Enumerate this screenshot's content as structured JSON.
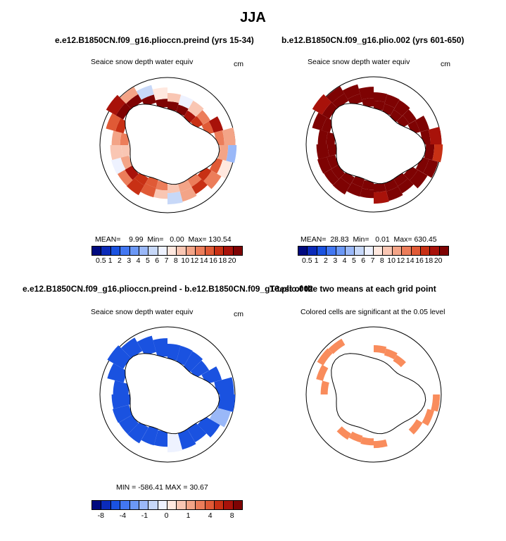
{
  "figure": {
    "title": "JJA",
    "common_subtitle": "Seaice snow depth water equiv",
    "units": "cm"
  },
  "panels": {
    "p1": {
      "case_title": "e.e12.B1850CN.f09_g16.plioccn.preind (yrs 15-34)",
      "stats": {
        "mean_label": "MEAN=",
        "mean": "9.99",
        "min_label": "Min=",
        "min": "0.00",
        "max_label": "Max=",
        "max": "130.54"
      }
    },
    "p2": {
      "case_title": "b.e12.B1850CN.f09_g16.plio.002 (yrs 601-650)",
      "stats": {
        "mean_label": "MEAN=",
        "mean": "28.83",
        "min_label": "Min=",
        "min": "0.01",
        "max_label": "Max=",
        "max": "630.45"
      }
    },
    "p3": {
      "case_title": "e.e12.B1850CN.f09_g16.plioccn.preind - b.e12.B1850CN.f09_g16.plio.002",
      "stats_text": "MIN = -586.41  MAX = 30.67"
    },
    "p4": {
      "case_title": "T-test of the two means at each grid point",
      "subtitle": "Colored cells are significant at the 0.05 level"
    }
  },
  "colorbars": {
    "abs_colors": [
      "#000a7f",
      "#0b2bb9",
      "#1a52e0",
      "#4277f2",
      "#6b98f6",
      "#9ab8f8",
      "#c7d8f8",
      "#eef2ff",
      "#ffe8df",
      "#f9c6b3",
      "#f3a487",
      "#ec7d5a",
      "#e05a36",
      "#c83014",
      "#a8120a",
      "#7e0303"
    ],
    "abs_labels": [
      "0.5",
      "1",
      "2",
      "3",
      "4",
      "5",
      "6",
      "7",
      "8",
      "10",
      "12",
      "14",
      "16",
      "18",
      "20"
    ],
    "diff_colors": [
      "#000a7f",
      "#0b2bb9",
      "#1a52e0",
      "#4277f2",
      "#6b98f6",
      "#9ab8f8",
      "#c7d8f8",
      "#eef2ff",
      "#ffe8df",
      "#f9c6b3",
      "#f3a487",
      "#ec7d5a",
      "#e05a36",
      "#c83014",
      "#a8120a",
      "#7e0303"
    ],
    "diff_labels": [
      "-8",
      "-4",
      "-1",
      "0",
      "1",
      "4",
      "8"
    ]
  },
  "colors": {
    "sig_cell": "#f98c5c",
    "land_outline": "#000000"
  },
  "chart_data": [
    {
      "type": "heatmap",
      "title": "e.e12.B1850CN.f09_g16.plioccn.preind (yrs 15-34)",
      "subtitle": "Seaice snow depth water equiv",
      "units": "cm",
      "mean": 9.99,
      "min": 0.0,
      "max": 130.54,
      "levels": [
        0.5,
        1,
        2,
        3,
        4,
        5,
        6,
        7,
        8,
        10,
        12,
        14,
        16,
        18,
        20
      ],
      "ring": [
        8,
        6,
        9,
        12,
        18,
        10,
        4,
        7,
        13,
        16,
        11,
        5,
        9,
        14,
        17,
        12,
        6,
        8,
        11,
        15,
        18,
        10,
        5,
        7
      ],
      "inner": [
        20,
        20,
        18,
        16,
        14,
        12,
        10,
        14,
        16,
        12,
        10,
        8,
        12,
        14,
        16,
        18,
        10,
        8,
        12,
        16,
        20,
        20,
        20,
        20
      ]
    },
    {
      "type": "heatmap",
      "title": "b.e12.B1850CN.f09_g16.plio.002 (yrs 601-650)",
      "subtitle": "Seaice snow depth water equiv",
      "units": "cm",
      "mean": 28.83,
      "min": 0.01,
      "max": 630.45,
      "levels": [
        0.5,
        1,
        2,
        3,
        4,
        5,
        6,
        7,
        8,
        10,
        12,
        14,
        16,
        18,
        20
      ],
      "ring": [
        20,
        20,
        20,
        20,
        20,
        18,
        16,
        20,
        20,
        20,
        20,
        18,
        20,
        20,
        20,
        20,
        20,
        20,
        20,
        20,
        18,
        20,
        20,
        20
      ],
      "inner": [
        20,
        20,
        20,
        20,
        20,
        20,
        20,
        20,
        20,
        20,
        20,
        20,
        20,
        20,
        20,
        20,
        20,
        20,
        20,
        20,
        20,
        20,
        20,
        20
      ]
    },
    {
      "type": "heatmap",
      "title": "e.e12.B1850CN.f09_g16.plioccn.preind - b.e12.B1850CN.f09_g16.plio.002",
      "subtitle": "Seaice snow depth water equiv",
      "units": "cm",
      "min": -586.41,
      "max": 30.67,
      "levels": [
        -8,
        -4,
        -1,
        0,
        1,
        4,
        8
      ],
      "ring": [
        -8,
        -8,
        -8,
        -8,
        -8,
        -8,
        -8,
        -4,
        -8,
        -8,
        -8,
        -1,
        -8,
        -8,
        -8,
        -8,
        -8,
        -8,
        -8,
        -8,
        -8,
        -8,
        -8,
        -8
      ]
    },
    {
      "type": "heatmap",
      "title": "T-test of the two means at each grid point",
      "subtitle": "Colored cells are significant at the 0.05 level",
      "significant_sectors": [
        0,
        1,
        2,
        6,
        7,
        8,
        11,
        12,
        13,
        14,
        18,
        19,
        20,
        21
      ]
    }
  ]
}
